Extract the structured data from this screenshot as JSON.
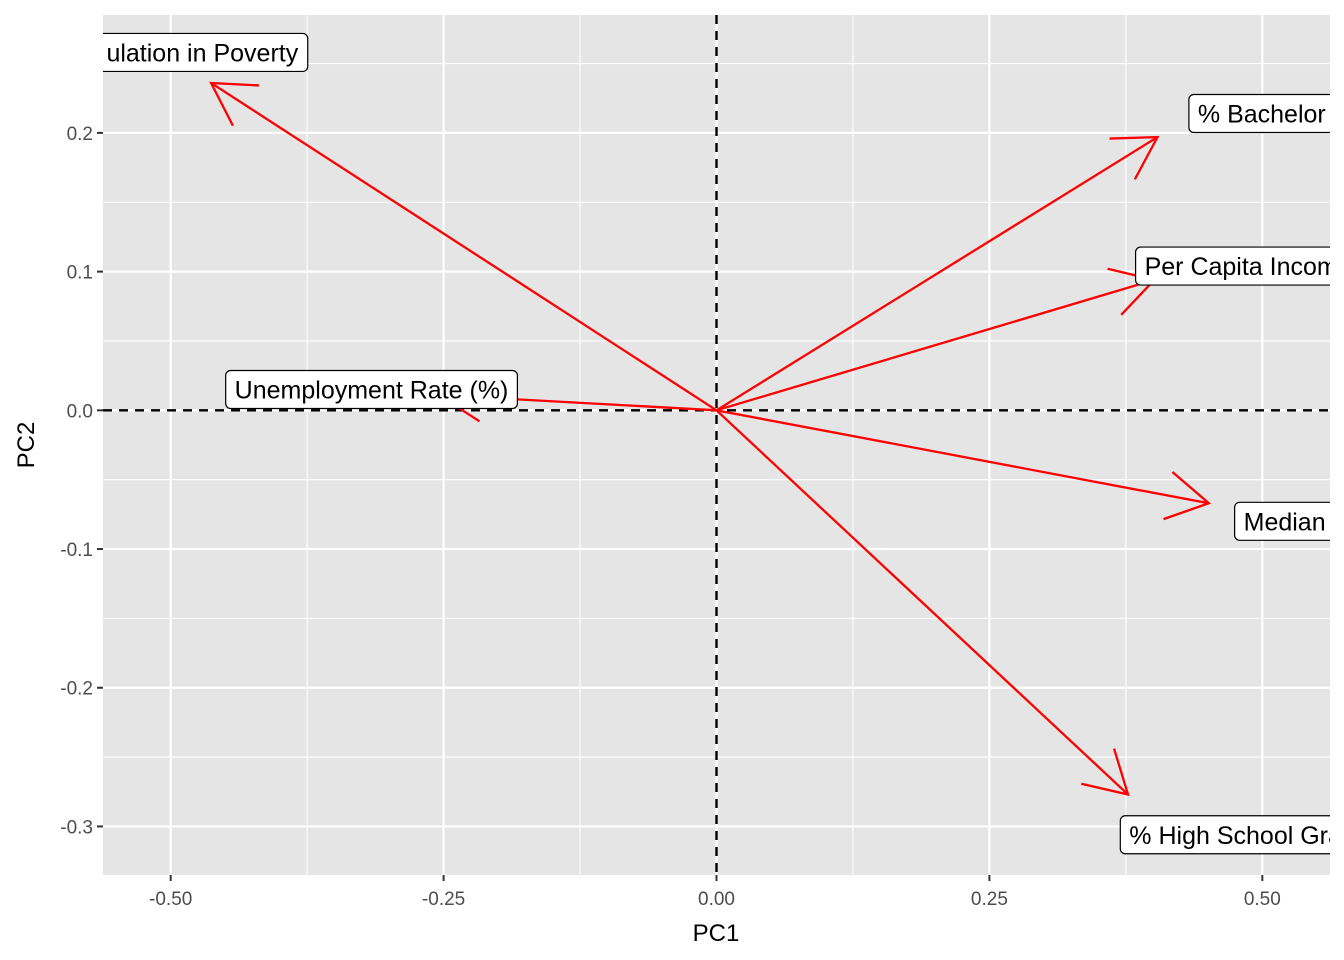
{
  "chart_data": {
    "type": "biplot-vectors",
    "title": "",
    "xlabel": "PC1",
    "ylabel": "PC2",
    "xlim": [
      -0.562,
      0.562
    ],
    "ylim": [
      -0.335,
      0.285
    ],
    "x_major_ticks": [
      -0.5,
      -0.25,
      0.0,
      0.25,
      0.5
    ],
    "x_tick_labels": [
      "-0.50",
      "-0.25",
      "0.00",
      "0.25",
      "0.50"
    ],
    "y_major_ticks": [
      -0.3,
      -0.2,
      -0.1,
      0.0,
      0.1,
      0.2
    ],
    "y_tick_labels": [
      "-0.3",
      "-0.2",
      "-0.1",
      "0.0",
      "0.1",
      "0.2"
    ],
    "grid": true,
    "reference_lines": {
      "x": 0,
      "y": 0,
      "style": "dashed"
    },
    "colors": {
      "panel": "#e5e5e5",
      "grid": "#ffffff",
      "vector": "#ff0000",
      "reference_line": "#000000"
    },
    "vectors": [
      {
        "label": "% Population in Poverty",
        "displayed_text": "ulation in Poverty",
        "x": -0.463,
        "y": 0.236,
        "label_x": -0.471,
        "label_y": 0.258
      },
      {
        "label": "% Bachelor s Degree or Higher",
        "displayed_text": "% Bachelor s Degree or H",
        "x": 0.404,
        "y": 0.197,
        "label_x": 0.574,
        "label_y": 0.214
      },
      {
        "label": "Per Capita Income",
        "displayed_text": "Per Capita Income",
        "x": 0.401,
        "y": 0.094,
        "label_x": 0.487,
        "label_y": 0.104
      },
      {
        "label": "Unemployment Rate (%)",
        "displayed_text": "Unemployment Rate (%)",
        "x": -0.254,
        "y": 0.011,
        "label_x": -0.316,
        "label_y": 0.015
      },
      {
        "label": "Median Household Income",
        "displayed_text": "Median Househol",
        "x": 0.451,
        "y": -0.067,
        "label_x": 0.572,
        "label_y": -0.08
      },
      {
        "label": "% High School Graduate or Higher",
        "displayed_text": "% High School Graduate or H",
        "x": 0.377,
        "y": -0.277,
        "label_x": 0.529,
        "label_y": -0.306
      }
    ]
  }
}
